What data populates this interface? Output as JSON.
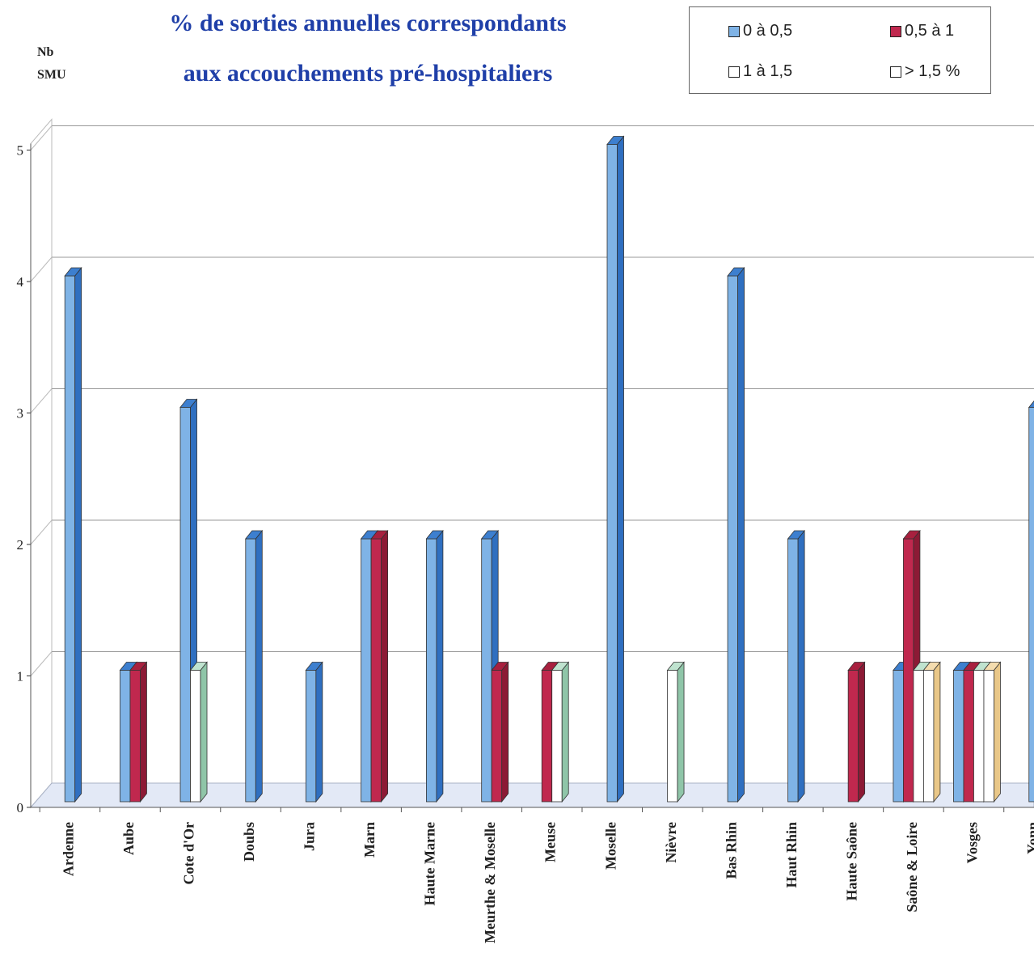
{
  "chart_data": {
    "type": "bar",
    "title": "% de sorties annuelles correspondants",
    "subtitle": "aux accouchements pré-hospitaliers",
    "ylabel_line1": "Nb",
    "ylabel_line2": "SMU",
    "ylim": [
      0,
      5
    ],
    "yticks": [
      "0",
      "1",
      "2",
      "3",
      "4",
      "5"
    ],
    "grid": true,
    "legend_position": "top-right",
    "categories": [
      "Ardenne",
      "Aube",
      "Cote d'Or",
      "Doubs",
      "Jura",
      "Marn",
      "Haute Marne",
      "Meurthe & Moselle",
      "Meuse",
      "Moselle",
      "Nièvre",
      "Bas Rhin",
      "Haut Rhin",
      "Haute Saône",
      "Saône & Loire",
      "Vosges",
      "Yonn"
    ],
    "series": [
      {
        "name": "0 à 0,5",
        "color": "#7fb3e6",
        "values": [
          4,
          1,
          3,
          2,
          1,
          2,
          2,
          2,
          0,
          5,
          0,
          4,
          2,
          0,
          1,
          1,
          3
        ]
      },
      {
        "name": "0,5 à 1",
        "color": "#c0284e",
        "values": [
          0,
          1,
          0,
          0,
          0,
          2,
          0,
          1,
          1,
          0,
          0,
          0,
          0,
          1,
          2,
          1,
          0
        ]
      },
      {
        "name": "1 à 1,5",
        "color": "#ffffff",
        "values": [
          0,
          0,
          1,
          0,
          0,
          0,
          0,
          0,
          1,
          0,
          1,
          0,
          0,
          0,
          1,
          1,
          0
        ]
      },
      {
        "name": "> 1,5 %",
        "color": "#ffffff",
        "values": [
          0,
          0,
          0,
          0,
          0,
          0,
          0,
          0,
          0,
          0,
          0,
          0,
          0,
          0,
          1,
          1,
          0
        ]
      }
    ]
  }
}
